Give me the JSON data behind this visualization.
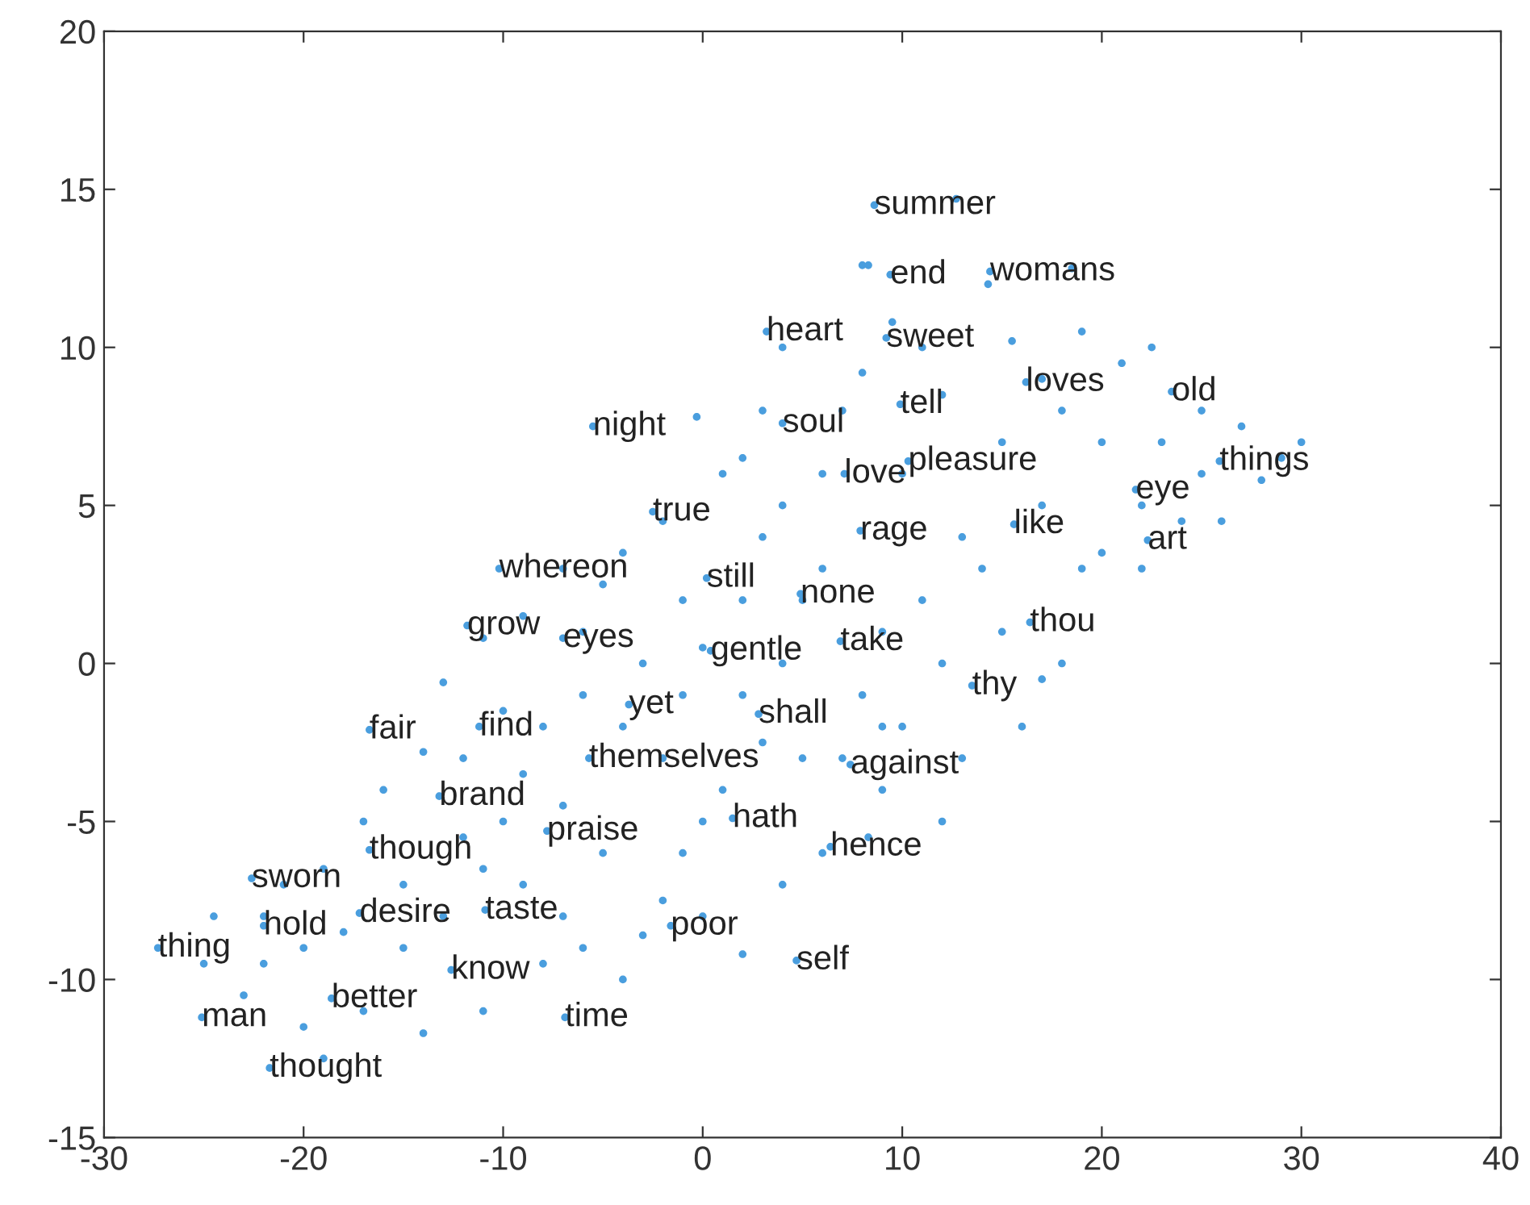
{
  "chart_data": {
    "type": "scatter",
    "marker": "circle",
    "grid": false,
    "x": [
      12.7,
      8,
      8.3,
      14.3,
      18.5,
      4,
      8,
      9.5,
      15.5,
      19,
      22.5,
      21,
      27,
      30,
      29,
      25,
      28,
      26,
      24,
      22,
      20,
      18,
      15,
      12,
      10,
      13,
      17,
      19,
      20,
      18,
      17,
      15,
      14,
      11,
      12,
      9,
      8,
      9,
      7,
      9,
      8.3,
      6,
      5,
      4,
      5,
      3,
      2,
      -0.3,
      1,
      4,
      6,
      -2,
      -4,
      -5,
      -7,
      -9,
      -11,
      -13,
      -10,
      -8,
      -6,
      -4,
      -2,
      -1,
      0,
      2,
      3,
      1,
      0,
      -1,
      -2,
      -3,
      -5,
      -7,
      -9,
      -12,
      -14,
      -16,
      -17,
      -19,
      -21,
      -22,
      -24.5,
      -25,
      -23,
      -20,
      -19,
      -17,
      -14,
      -15,
      -13,
      -11,
      -9,
      -7,
      -6,
      -4,
      -8,
      -11,
      -10,
      -12,
      2,
      4,
      0,
      13,
      12,
      10,
      16,
      22,
      25,
      23,
      17,
      11,
      7,
      6,
      3,
      2,
      -3,
      -6,
      -1,
      -15,
      -18,
      -20,
      -22,
      8.6,
      9.4,
      14.4,
      3.2,
      9.2,
      16.2,
      23.5,
      9.9,
      -5.5,
      4.0,
      25.9,
      10.3,
      7.1,
      21.7,
      -2.5,
      7.9,
      15.6,
      22.3,
      -10.2,
      0.2,
      4.9,
      16.4,
      -11.8,
      -7.0,
      0.4,
      6.9,
      13.5,
      -16.7,
      -11.2,
      -3.7,
      2.8,
      -5.7,
      7.4,
      -13.2,
      1.5,
      -7.8,
      -16.7,
      6.4,
      -22.6,
      -22.0,
      -17.2,
      -10.9,
      -1.6,
      -27.3,
      -12.6,
      4.7,
      -18.6,
      -25.1,
      -6.9,
      -21.7
    ],
    "values": [
      14.7,
      12.6,
      12.6,
      12,
      12.5,
      10,
      9.2,
      10.8,
      10.2,
      10.5,
      10,
      9.5,
      7.5,
      7,
      6.5,
      8,
      5.8,
      4.5,
      4.5,
      5,
      7,
      8,
      7,
      8.5,
      6,
      4,
      5,
      3,
      3.5,
      0,
      -0.5,
      1,
      3,
      2,
      0,
      1,
      -1,
      -2,
      -3,
      -4,
      -5.5,
      -6,
      -3,
      0,
      2,
      4,
      6.5,
      7.8,
      6,
      5,
      3,
      4.5,
      3.5,
      2.5,
      3,
      1.5,
      0.8,
      -0.6,
      -1.5,
      -2,
      -1,
      -2,
      -3,
      -1,
      0.5,
      -1,
      -2.5,
      -4,
      -5,
      -6,
      -7.5,
      -8.6,
      -6,
      -4.5,
      -3.5,
      -3,
      -2.8,
      -4,
      -5,
      -6.5,
      -7,
      -8,
      -8,
      -9.5,
      -10.5,
      -11.5,
      -12.5,
      -11,
      -11.7,
      -9,
      -8,
      -6.5,
      -7,
      -8,
      -9,
      -10,
      -9.5,
      -11,
      -5,
      -5.5,
      -9.2,
      -7,
      -8,
      -3,
      -5,
      -2,
      -2,
      3,
      6,
      7,
      9,
      10,
      8,
      6,
      8,
      2,
      0,
      1,
      2,
      -7,
      -8.5,
      -9,
      -9.5,
      14.5,
      12.3,
      12.4,
      10.5,
      10.3,
      8.9,
      8.6,
      8.2,
      7.5,
      7.6,
      6.4,
      6.4,
      6.0,
      5.5,
      4.8,
      4.2,
      4.4,
      3.9,
      3.0,
      2.7,
      2.2,
      1.3,
      1.2,
      0.8,
      0.4,
      0.7,
      -0.7,
      -2.1,
      -2.0,
      -1.3,
      -1.6,
      -3.0,
      -3.2,
      -4.2,
      -4.9,
      -5.3,
      -5.9,
      -5.8,
      -6.8,
      -8.3,
      -7.9,
      -7.8,
      -8.3,
      -9.0,
      -9.7,
      -9.4,
      -10.6,
      -11.2,
      -11.2,
      -12.8
    ],
    "color": "#4a9ede",
    "xlim": [
      -30,
      40
    ],
    "xticks": [
      -30,
      -20,
      -10,
      0,
      10,
      20,
      30,
      40
    ],
    "ylim": [
      -15,
      20
    ],
    "yticks": [
      -15,
      -10,
      -5,
      0,
      5,
      10,
      15,
      20
    ],
    "annotations": [
      {
        "text": "summer",
        "x": 8.6,
        "y": 14.5
      },
      {
        "text": "end",
        "x": 9.4,
        "y": 12.3
      },
      {
        "text": "womans",
        "x": 14.4,
        "y": 12.4
      },
      {
        "text": "heart",
        "x": 3.2,
        "y": 10.5
      },
      {
        "text": "sweet",
        "x": 9.2,
        "y": 10.3
      },
      {
        "text": "loves",
        "x": 16.2,
        "y": 8.9
      },
      {
        "text": "old",
        "x": 23.5,
        "y": 8.6
      },
      {
        "text": "tell",
        "x": 9.9,
        "y": 8.2
      },
      {
        "text": "night",
        "x": -5.5,
        "y": 7.5
      },
      {
        "text": "soul",
        "x": 4.0,
        "y": 7.6
      },
      {
        "text": "things",
        "x": 25.9,
        "y": 6.4
      },
      {
        "text": "pleasure",
        "x": 10.3,
        "y": 6.4
      },
      {
        "text": "love",
        "x": 7.1,
        "y": 6.0
      },
      {
        "text": "eye",
        "x": 21.7,
        "y": 5.5
      },
      {
        "text": "true",
        "x": -2.5,
        "y": 4.8
      },
      {
        "text": "rage",
        "x": 7.9,
        "y": 4.2
      },
      {
        "text": "like",
        "x": 15.6,
        "y": 4.4
      },
      {
        "text": "art",
        "x": 22.3,
        "y": 3.9
      },
      {
        "text": "whereon",
        "x": -10.2,
        "y": 3.0
      },
      {
        "text": "still",
        "x": 0.2,
        "y": 2.7
      },
      {
        "text": "none",
        "x": 4.9,
        "y": 2.2
      },
      {
        "text": "thou",
        "x": 16.4,
        "y": 1.3
      },
      {
        "text": "grow",
        "x": -11.8,
        "y": 1.2
      },
      {
        "text": "eyes",
        "x": -7.0,
        "y": 0.8
      },
      {
        "text": "gentle",
        "x": 0.4,
        "y": 0.4
      },
      {
        "text": "take",
        "x": 6.9,
        "y": 0.7
      },
      {
        "text": "thy",
        "x": 13.5,
        "y": -0.7
      },
      {
        "text": "fair",
        "x": -16.7,
        "y": -2.1
      },
      {
        "text": "find",
        "x": -11.2,
        "y": -2.0
      },
      {
        "text": "yet",
        "x": -3.7,
        "y": -1.3
      },
      {
        "text": "shall",
        "x": 2.8,
        "y": -1.6
      },
      {
        "text": "themselves",
        "x": -5.7,
        "y": -3.0
      },
      {
        "text": "against",
        "x": 7.4,
        "y": -3.2
      },
      {
        "text": "brand",
        "x": -13.2,
        "y": -4.2
      },
      {
        "text": "hath",
        "x": 1.5,
        "y": -4.9
      },
      {
        "text": "praise",
        "x": -7.8,
        "y": -5.3
      },
      {
        "text": "though",
        "x": -16.7,
        "y": -5.9
      },
      {
        "text": "hence",
        "x": 6.4,
        "y": -5.8
      },
      {
        "text": "sworn",
        "x": -22.6,
        "y": -6.8
      },
      {
        "text": "hold",
        "x": -22.0,
        "y": -8.3
      },
      {
        "text": "desire",
        "x": -17.2,
        "y": -7.9
      },
      {
        "text": "taste",
        "x": -10.9,
        "y": -7.8
      },
      {
        "text": "poor",
        "x": -1.6,
        "y": -8.3
      },
      {
        "text": "thing",
        "x": -27.3,
        "y": -9.0
      },
      {
        "text": "know",
        "x": -12.6,
        "y": -9.7
      },
      {
        "text": "self",
        "x": 4.7,
        "y": -9.4
      },
      {
        "text": "better",
        "x": -18.6,
        "y": -10.6
      },
      {
        "text": "man",
        "x": -25.1,
        "y": -11.2
      },
      {
        "text": "time",
        "x": -6.9,
        "y": -11.2
      },
      {
        "text": "thought",
        "x": -21.7,
        "y": -12.8
      }
    ]
  }
}
